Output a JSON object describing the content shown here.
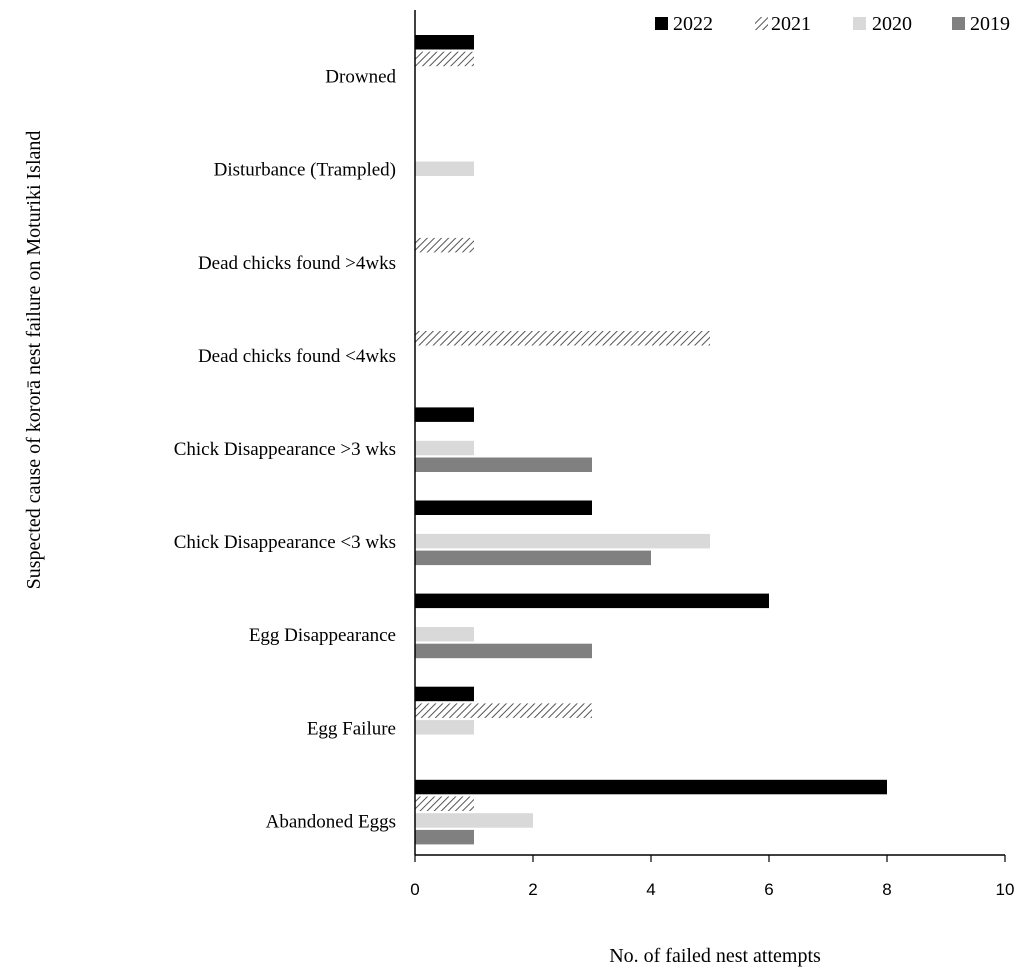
{
  "chart_data": {
    "type": "bar",
    "orientation": "horizontal",
    "xlabel": "No. of failed nest attempts",
    "ylabel": "Suspected cause of kororā nest failure on Moturiki Island",
    "xlim": [
      0,
      10
    ],
    "xticks": [
      0,
      2,
      4,
      6,
      8,
      10
    ],
    "grid": false,
    "legend_position": "top-right",
    "categories": [
      "Drowned",
      "Disturbance (Trampled)",
      "Dead chicks found >4wks",
      "Dead chicks found <4wks",
      "Chick Disappearance >3  wks",
      "Chick Disappearance <3  wks",
      "Egg Disappearance",
      "Egg Failure",
      "Abandoned Eggs"
    ],
    "series": [
      {
        "name": "2022",
        "fill": "#000000",
        "pattern": "solid",
        "values": [
          1,
          0,
          0,
          0,
          1,
          3,
          6,
          1,
          8
        ]
      },
      {
        "name": "2021",
        "fill": "#ffffff",
        "pattern": "diagonal-hatch",
        "values": [
          1,
          0,
          1,
          5,
          0,
          0,
          0,
          3,
          1
        ]
      },
      {
        "name": "2020",
        "fill": "#d9d9d9",
        "pattern": "solid",
        "values": [
          0,
          1,
          0,
          0,
          1,
          5,
          1,
          1,
          2
        ]
      },
      {
        "name": "2019",
        "fill": "#808080",
        "pattern": "solid",
        "values": [
          0,
          0,
          0,
          0,
          3,
          4,
          3,
          0,
          1
        ]
      }
    ]
  }
}
